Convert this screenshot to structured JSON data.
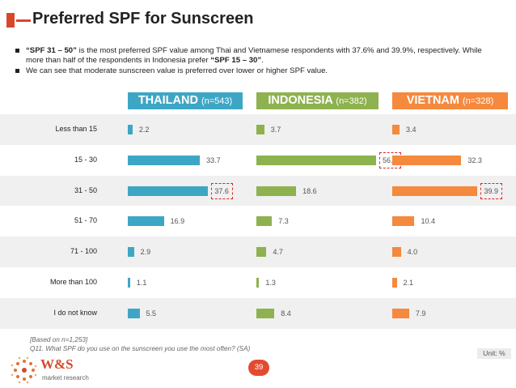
{
  "header": {
    "title": "Preferred SPF for Sunscreen"
  },
  "bullets": [
    {
      "parts": [
        {
          "text": "“SPF 31 – 50”",
          "bold": true
        },
        {
          "text": " is the most preferred SPF value among Thai and Vietnamese respondents with 37.6% and 39.9%, respectively. While more than half of the respondents in Indonesia prefer ",
          "bold": false
        },
        {
          "text": "“SPF 15 – 30”",
          "bold": true
        },
        {
          "text": ".",
          "bold": false
        }
      ]
    },
    {
      "parts": [
        {
          "text": "We can see that moderate sunscreen value is preferred over lower or higher SPF value.",
          "bold": false
        }
      ]
    }
  ],
  "chart_data": {
    "type": "bar",
    "orientation": "horizontal",
    "categories": [
      "Less than 15",
      "15 - 30",
      "31 - 50",
      "51 - 70",
      "71 - 100",
      "More than 100",
      "I do not know"
    ],
    "series": [
      {
        "name": "THAILAND",
        "n_label": "(n=543)",
        "color": "#3ea6c5",
        "values": [
          2.2,
          33.7,
          37.6,
          16.9,
          2.9,
          1.1,
          5.5
        ],
        "highlight_index": 2
      },
      {
        "name": "INDONESIA",
        "n_label": "(n=382)",
        "color": "#8eb24f",
        "values": [
          3.7,
          56.0,
          18.6,
          7.3,
          4.7,
          1.3,
          8.4
        ],
        "highlight_index": 1
      },
      {
        "name": "VIETNAM",
        "n_label": "(n=328)",
        "color": "#f5893e",
        "values": [
          3.4,
          32.3,
          39.9,
          10.4,
          4.0,
          2.1,
          7.9
        ],
        "highlight_index": 2
      }
    ],
    "value_labels": [
      [
        "2.2",
        "33.7",
        "37.6",
        "16.9",
        "2.9",
        "1.1",
        "5.5"
      ],
      [
        "3.7",
        "56.0",
        "18.6",
        "7.3",
        "4.7",
        "1.3",
        "8.4"
      ],
      [
        "3.4",
        "32.3",
        "39.9",
        "10.4",
        "4.0",
        "2.1",
        "7.9"
      ]
    ],
    "unit": "Unit: %"
  },
  "footnote": {
    "line1": "[Based on n=1,253]",
    "line2": "Q11. What SPF do you use on the sunscreen you use the most often? (SA)"
  },
  "page_number": "39",
  "logo": {
    "name": "W&S",
    "tagline": "market research"
  },
  "colors": {
    "accent": "#d9472b",
    "thailand": "#3ea6c5",
    "indonesia": "#8eb24f",
    "vietnam": "#f5893e"
  }
}
